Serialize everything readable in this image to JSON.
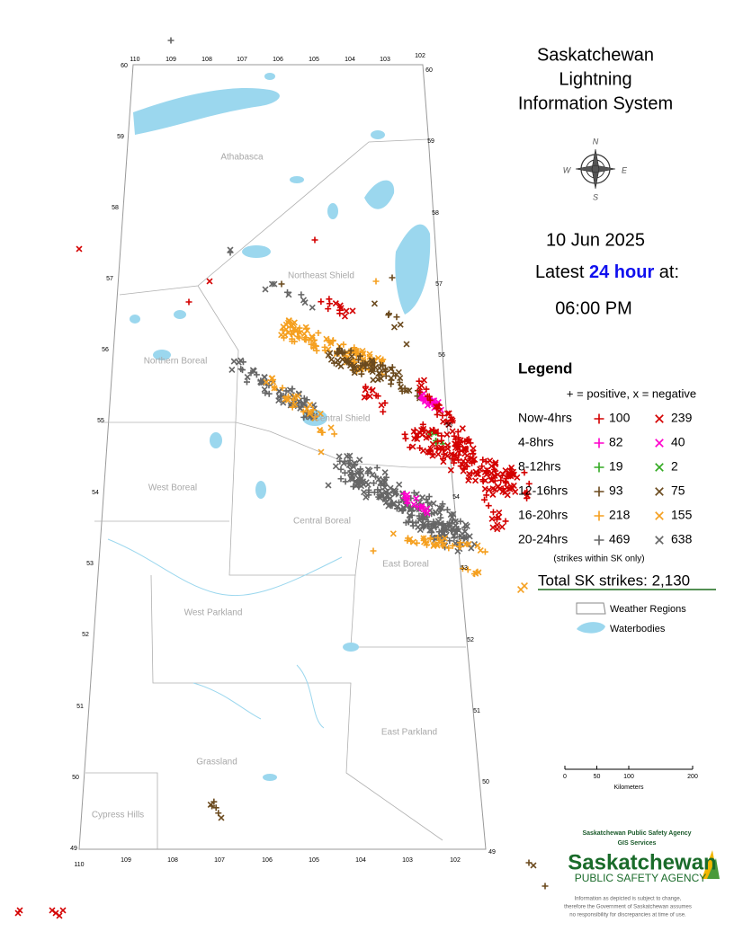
{
  "title": [
    "Saskatchewan",
    "Lightning",
    "Information System"
  ],
  "compass": [
    "N",
    "W",
    "E",
    "S"
  ],
  "date": "10 Jun 2025",
  "latest": {
    "before": "Latest",
    "highlight": "24 hour",
    "after": "at:"
  },
  "time": "06:00 PM",
  "legend": {
    "title": "Legend",
    "key": "+ = positive, x = negative",
    "rows": [
      {
        "label": "Now-4hrs",
        "color": "#d40000",
        "positive": 100,
        "negative": 239
      },
      {
        "label": "4-8hrs",
        "color": "#ff00cc",
        "positive": 82,
        "negative": 40
      },
      {
        "label": "8-12hrs",
        "color": "#33aa22",
        "positive": 19,
        "negative": 2
      },
      {
        "label": "12-16hrs",
        "color": "#6b4a1e",
        "positive": 93,
        "negative": 75
      },
      {
        "label": "16-20hrs",
        "color": "#f5a020",
        "positive": 218,
        "negative": 155
      },
      {
        "label": "20-24hrs",
        "color": "#666666",
        "positive": 469,
        "negative": 638
      }
    ],
    "note": "(strikes within SK only)",
    "total": "Total SK strikes: 2,130",
    "weather_regions": "Weather Regions",
    "waterbodies": "Waterbodies"
  },
  "regions": [
    "Athabasca",
    "Northeast Shield",
    "Northern Boreal",
    "Central Shield",
    "West Boreal",
    "Central Boreal",
    "East Boreal",
    "West Parkland",
    "East Parkland",
    "Grassland",
    "Cypress Hills"
  ],
  "lon_labels": [
    110,
    109,
    108,
    107,
    106,
    105,
    104,
    103,
    102
  ],
  "lat_labels": [
    60,
    59,
    58,
    57,
    56,
    55,
    54,
    53,
    52,
    51,
    50,
    49
  ],
  "scale": {
    "ticks": [
      0,
      50,
      100,
      200
    ],
    "unit": "Kilometers"
  },
  "agency": {
    "credit": [
      "Saskatchewan Public Safety Agency",
      "GIS  Services"
    ],
    "logo": [
      "Saskatchewan",
      "PUBLIC SAFETY AGENCY"
    ],
    "disclaimer": [
      "Information as depicted is subject to change,",
      "therefore the Government of Saskatchewan assumes",
      "no responsibility for discrepancies at time of use."
    ]
  }
}
